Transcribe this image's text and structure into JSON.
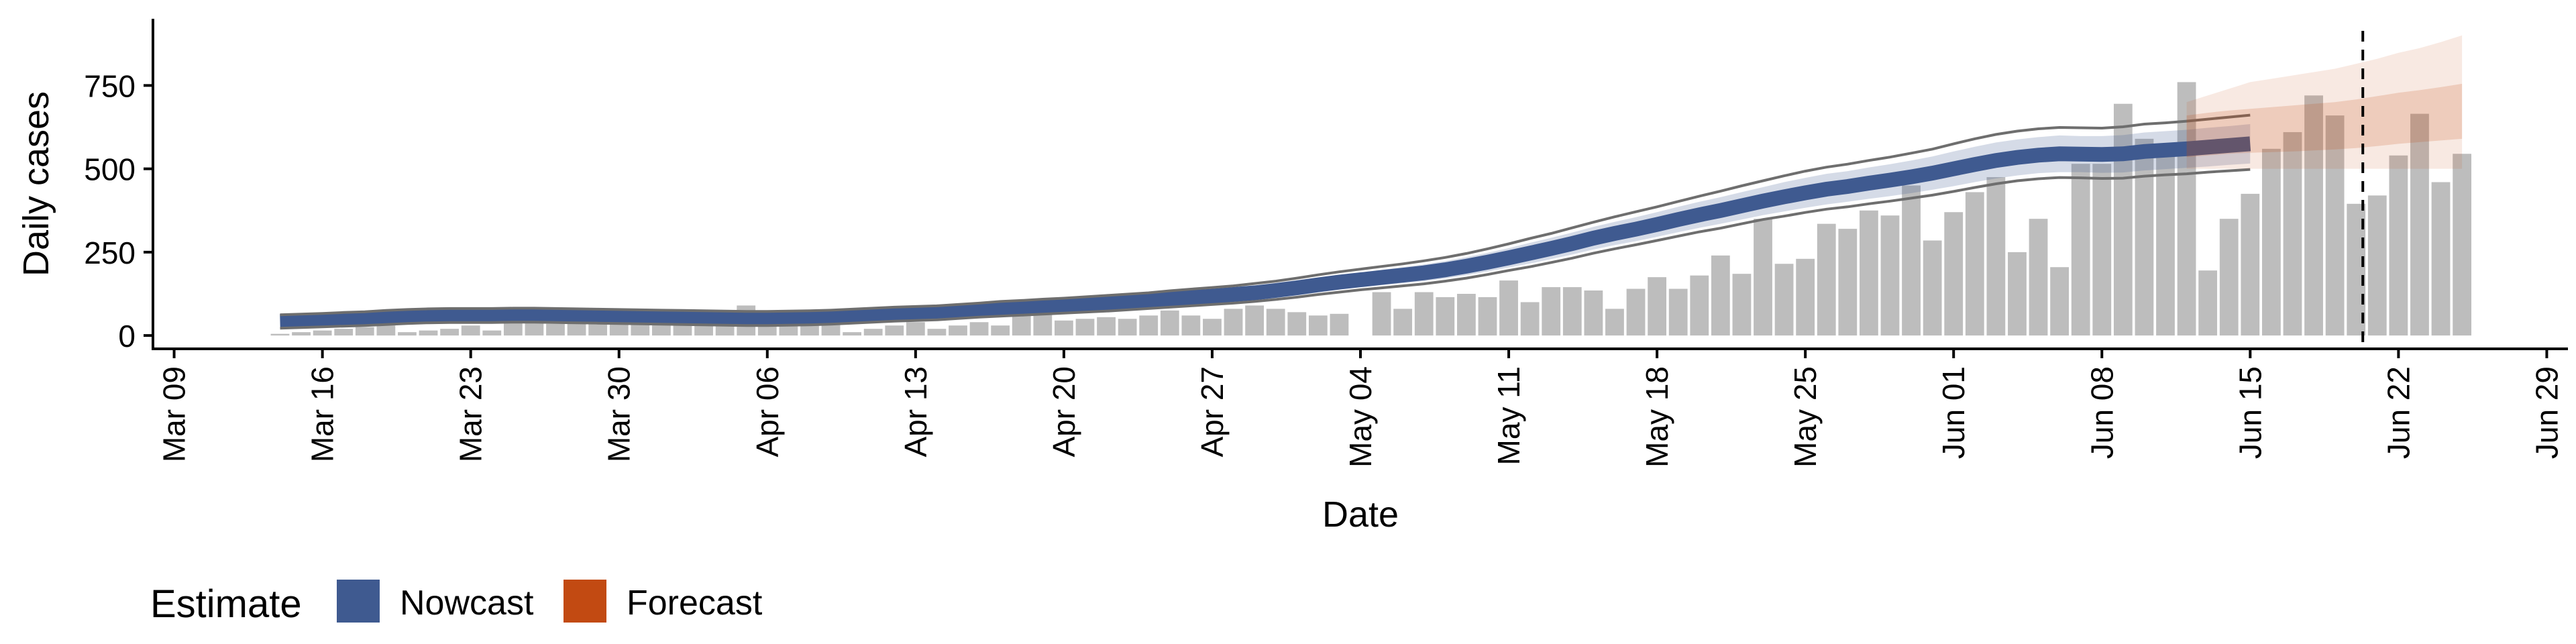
{
  "chart_data": {
    "type": "bar",
    "xlabel": "Date",
    "ylabel": "Daily cases",
    "x_ticks": [
      "Mar 09",
      "Mar 16",
      "Mar 23",
      "Mar 30",
      "Apr 06",
      "Apr 13",
      "Apr 20",
      "Apr 27",
      "May 04",
      "May 11",
      "May 18",
      "May 25",
      "Jun 01",
      "Jun 08",
      "Jun 15",
      "Jun 22",
      "Jun 29"
    ],
    "y_ticks": [
      "0",
      "250",
      "500",
      "750"
    ],
    "xlim": [
      "2020-03-08",
      "2020-06-30"
    ],
    "ylim": [
      -40,
      950
    ],
    "date_of_report": "2020-06-20",
    "grid": false,
    "legend": {
      "title": "Estimate",
      "position": "bottom-left",
      "items": [
        {
          "label": "Nowcast",
          "color": "#3f5a90"
        },
        {
          "label": "Forecast",
          "color": "#c24a12"
        }
      ]
    },
    "bar_color": "#bdbdbd",
    "bars": {
      "start_date": "2020-03-14",
      "values": [
        5,
        10,
        15,
        20,
        25,
        30,
        10,
        15,
        20,
        30,
        15,
        70,
        45,
        35,
        40,
        45,
        35,
        60,
        55,
        40,
        55,
        45,
        90,
        75,
        45,
        40,
        55,
        10,
        20,
        30,
        40,
        20,
        30,
        40,
        30,
        75,
        65,
        45,
        50,
        55,
        50,
        60,
        75,
        60,
        50,
        80,
        90,
        80,
        70,
        60,
        65,
        0,
        130,
        80,
        130,
        115,
        125,
        115,
        165,
        100,
        145,
        145,
        135,
        80,
        140,
        175,
        140,
        180,
        240,
        185,
        350,
        215,
        230,
        335,
        320,
        375,
        360,
        450,
        285,
        370,
        430,
        475,
        250,
        350,
        205,
        515,
        515,
        695,
        590,
        550,
        760,
        195,
        350,
        425,
        560,
        610,
        720,
        660,
        395,
        420,
        540,
        665,
        460,
        545
      ]
    },
    "series": [
      {
        "name": "Nowcast",
        "color": "#3f5a90",
        "start_date": "2020-03-14",
        "median": [
          42,
          44,
          46,
          48,
          50,
          54,
          57,
          59,
          60,
          60,
          60,
          61,
          61,
          60,
          59,
          58,
          57,
          56,
          55,
          54,
          53,
          52,
          51,
          51,
          52,
          53,
          55,
          58,
          61,
          64,
          66,
          68,
          72,
          76,
          80,
          83,
          86,
          89,
          92,
          96,
          100,
          104,
          109,
          114,
          118,
          123,
          128,
          135,
          143,
          152,
          160,
          167,
          174,
          181,
          188,
          197,
          208,
          220,
          233,
          247,
          261,
          276,
          292,
          306,
          319,
          333,
          348,
          362,
          375,
          389,
          403,
          416,
          428,
          439,
          447,
          457,
          466,
          476,
          487,
          500,
          513,
          525,
          534,
          541,
          545,
          544,
          543,
          545,
          552,
          556,
          560,
          565,
          570,
          575
        ],
        "lower90": [
          28,
          30,
          32,
          34,
          36,
          39,
          42,
          44,
          45,
          45,
          45,
          46,
          46,
          45,
          44,
          43,
          42,
          41,
          40,
          39,
          38,
          37,
          36,
          36,
          37,
          38,
          40,
          43,
          46,
          49,
          51,
          53,
          57,
          61,
          64,
          67,
          70,
          73,
          76,
          79,
          83,
          87,
          91,
          96,
          100,
          104,
          109,
          115,
          122,
          131,
          138,
          145,
          151,
          157,
          163,
          171,
          181,
          192,
          204,
          216,
          229,
          243,
          258,
          271,
          283,
          296,
          310,
          323,
          335,
          348,
          361,
          372,
          383,
          393,
          401,
          410,
          418,
          427,
          437,
          448,
          460,
          471,
          480,
          487,
          490,
          490,
          488,
          489,
          495,
          499,
          503,
          507,
          512,
          516
        ],
        "upper90": [
          56,
          58,
          60,
          63,
          65,
          69,
          72,
          74,
          75,
          75,
          75,
          76,
          76,
          75,
          74,
          73,
          72,
          71,
          70,
          69,
          68,
          67,
          66,
          66,
          67,
          68,
          70,
          73,
          76,
          79,
          81,
          83,
          87,
          91,
          96,
          99,
          102,
          106,
          109,
          113,
          117,
          121,
          127,
          132,
          136,
          142,
          148,
          155,
          164,
          173,
          182,
          189,
          197,
          205,
          213,
          223,
          235,
          248,
          262,
          278,
          293,
          309,
          326,
          341,
          355,
          370,
          386,
          401,
          415,
          430,
          445,
          460,
          473,
          485,
          493,
          504,
          514,
          525,
          537,
          552,
          566,
          579,
          588,
          595,
          600,
          598,
          598,
          601,
          609,
          613,
          617,
          623,
          628,
          634
        ],
        "lower_line": [
          22,
          24,
          26,
          28,
          30,
          33,
          36,
          38,
          39,
          39,
          39,
          40,
          40,
          39,
          38,
          37,
          36,
          35,
          34,
          33,
          32,
          31,
          30,
          30,
          31,
          32,
          34,
          37,
          40,
          43,
          45,
          47,
          51,
          55,
          58,
          61,
          64,
          67,
          70,
          73,
          77,
          81,
          85,
          89,
          93,
          97,
          102,
          108,
          115,
          123,
          130,
          137,
          143,
          149,
          155,
          163,
          172,
          183,
          195,
          206,
          219,
          232,
          247,
          260,
          272,
          285,
          298,
          311,
          322,
          335,
          348,
          358,
          369,
          379,
          386,
          395,
          403,
          412,
          421,
          432,
          444,
          455,
          464,
          470,
          474,
          473,
          471,
          472,
          478,
          482,
          485,
          490,
          494,
          498
        ],
        "upper_line": [
          62,
          64,
          66,
          69,
          71,
          75,
          78,
          80,
          81,
          81,
          81,
          82,
          82,
          81,
          80,
          79,
          78,
          77,
          76,
          75,
          74,
          73,
          72,
          72,
          73,
          74,
          76,
          79,
          82,
          85,
          87,
          89,
          93,
          97,
          102,
          105,
          109,
          112,
          116,
          120,
          124,
          128,
          134,
          139,
          144,
          149,
          156,
          163,
          172,
          182,
          191,
          199,
          207,
          215,
          224,
          234,
          246,
          260,
          275,
          291,
          306,
          323,
          340,
          356,
          371,
          386,
          402,
          418,
          433,
          449,
          464,
          479,
          493,
          505,
          514,
          525,
          535,
          547,
          559,
          575,
          590,
          603,
          613,
          620,
          624,
          623,
          622,
          626,
          634,
          638,
          643,
          649,
          655,
          661
        ]
      },
      {
        "name": "Forecast",
        "color": "#c24a12",
        "start_date": "2020-06-12",
        "median": [
          600,
          605,
          610,
          615,
          618,
          622,
          625,
          628,
          632,
          640,
          648,
          652,
          655,
          660
        ],
        "lower50": [
          535,
          540,
          545,
          548,
          550,
          552,
          555,
          558,
          562,
          568,
          575,
          580,
          585,
          590
        ],
        "upper50": [
          660,
          668,
          675,
          680,
          685,
          690,
          695,
          700,
          708,
          718,
          728,
          736,
          745,
          755
        ],
        "lower90": [
          500,
          500,
          500,
          500,
          500,
          500,
          500,
          500,
          500,
          500,
          500,
          500,
          500,
          500
        ],
        "upper90": [
          700,
          720,
          740,
          760,
          770,
          780,
          790,
          800,
          815,
          830,
          848,
          862,
          880,
          900
        ]
      }
    ]
  }
}
